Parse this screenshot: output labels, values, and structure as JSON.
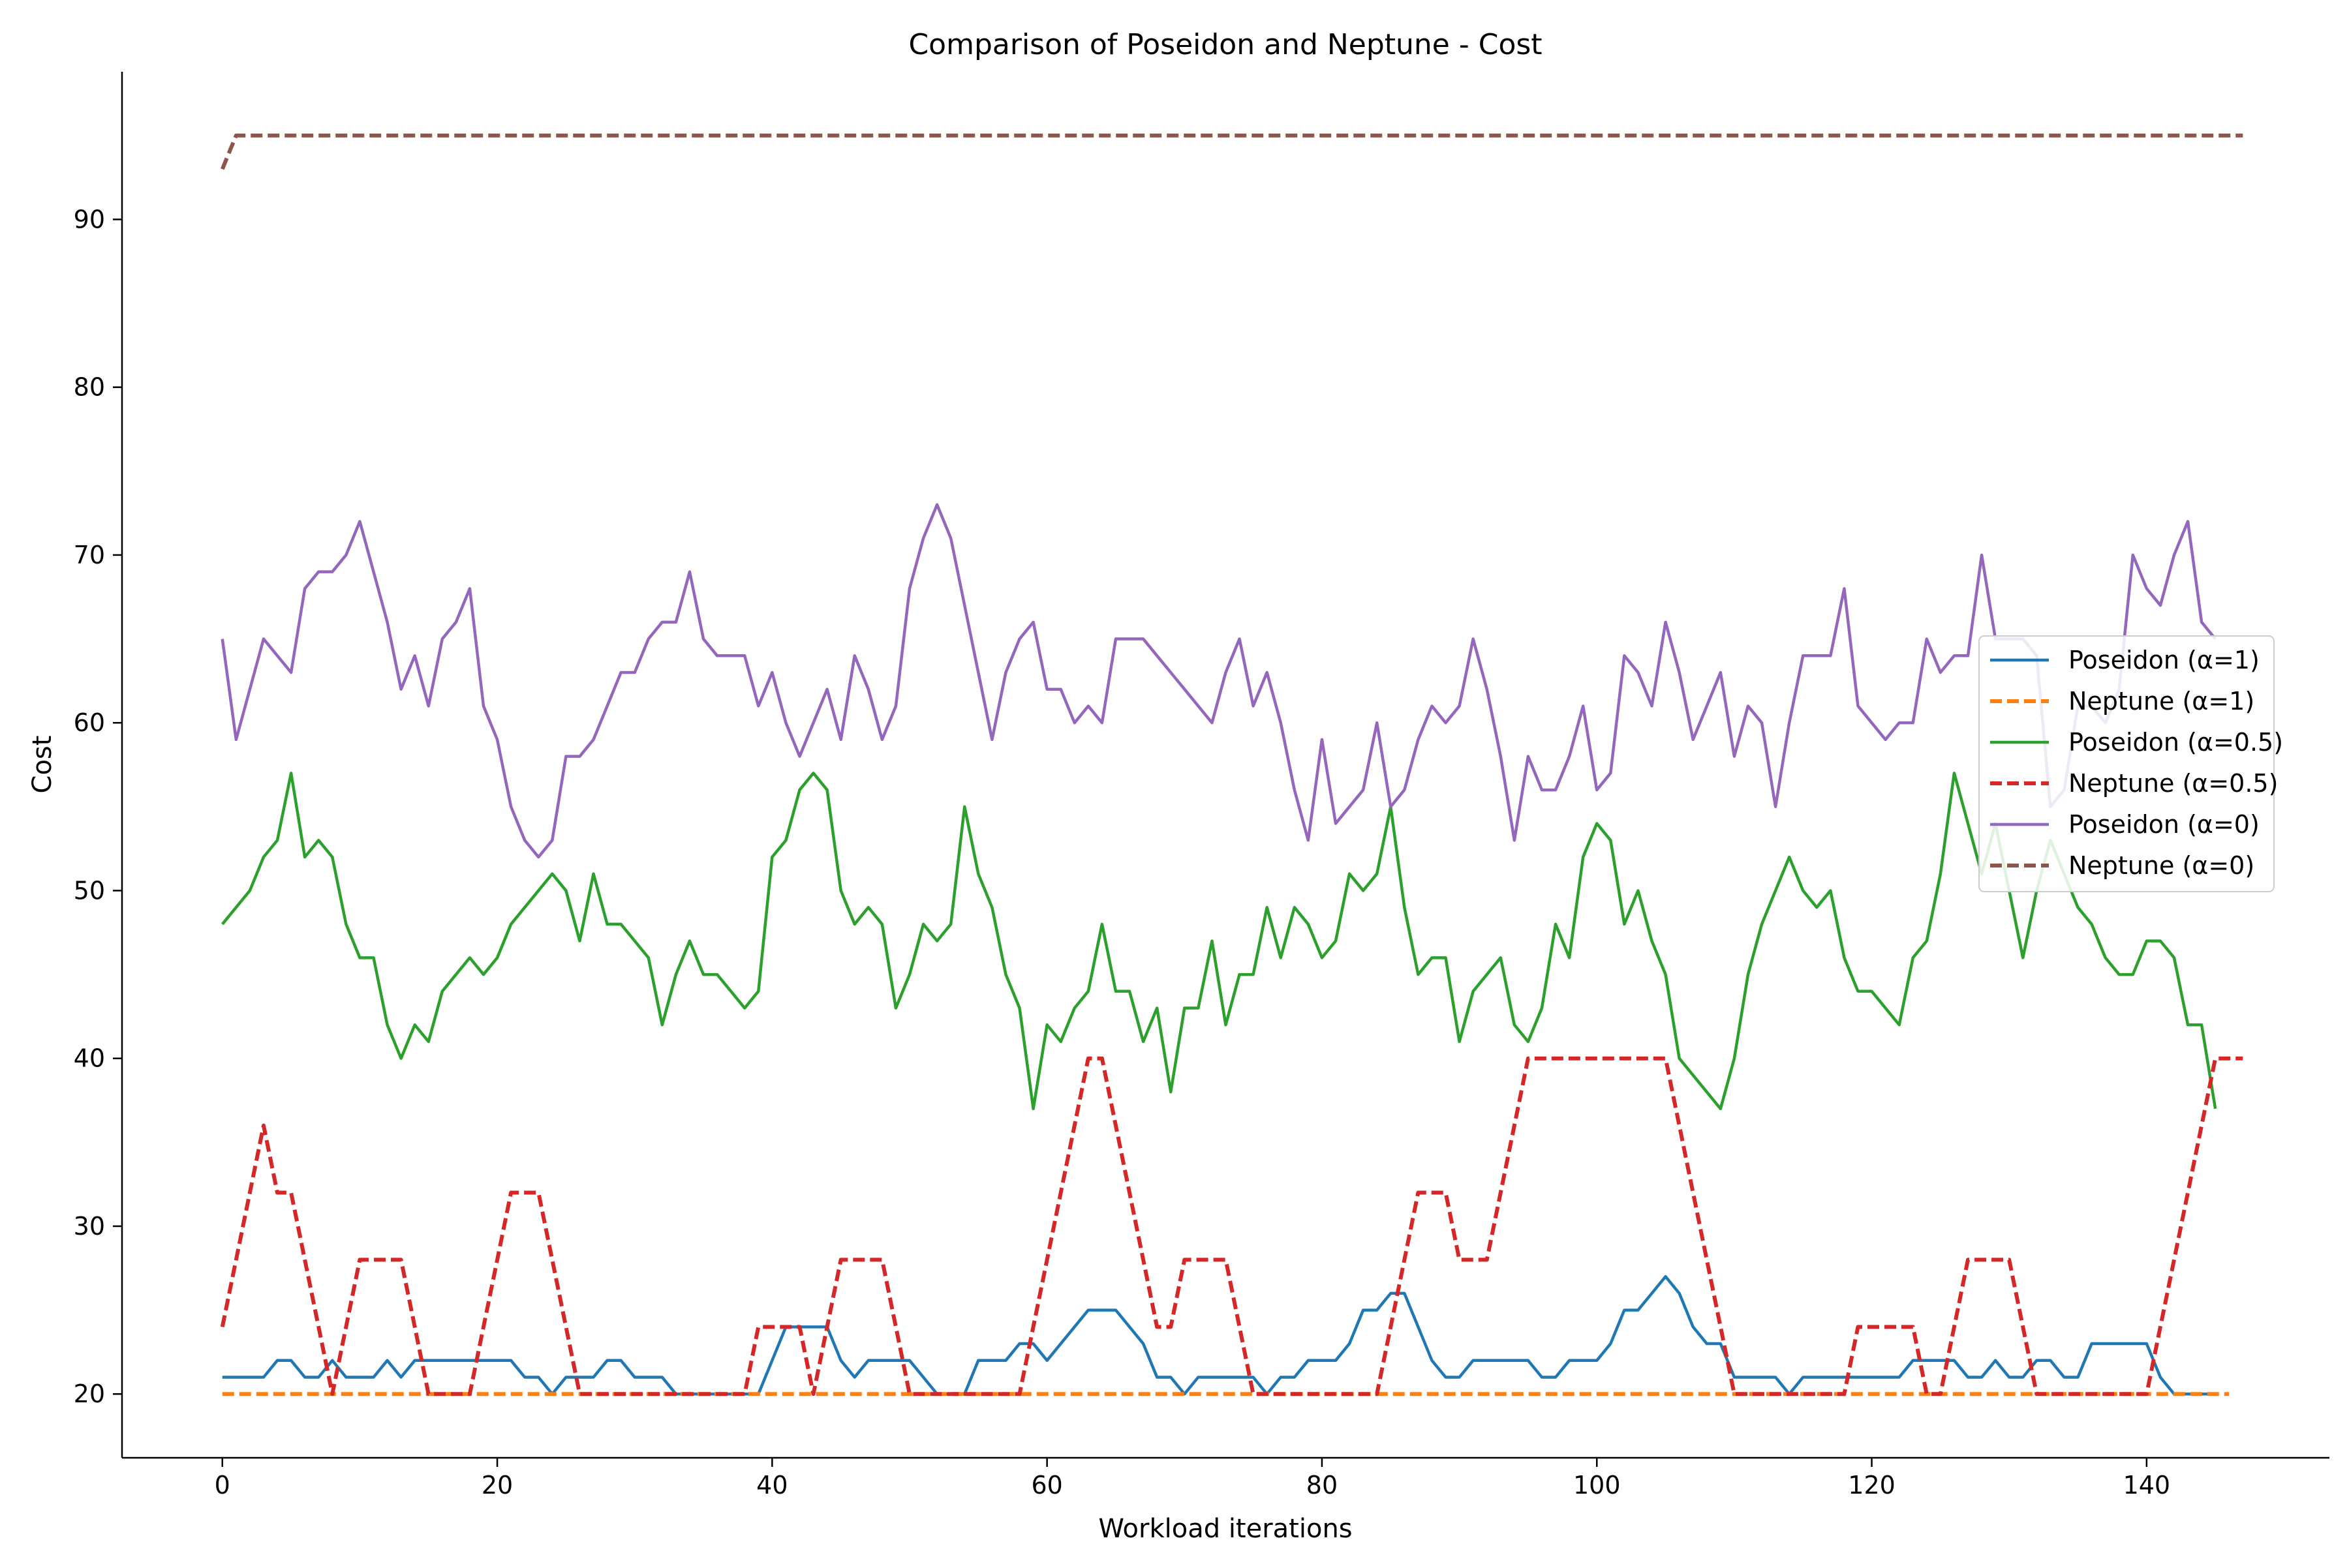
{
  "chart_data": {
    "type": "line",
    "title": "Comparison of Poseidon and Neptune - Cost",
    "xlabel": "Workload iterations",
    "ylabel": "Cost",
    "xlim": [
      -7.3,
      153.3
    ],
    "ylim": [
      16.2,
      98.8
    ],
    "xticks": [
      0,
      20,
      40,
      60,
      80,
      100,
      120,
      140
    ],
    "yticks": [
      20,
      30,
      40,
      50,
      60,
      70,
      80,
      90
    ],
    "grid": false,
    "legend": "center-right",
    "series": [
      {
        "name": "Poseidon (α=1)",
        "color": "#1f77b4",
        "dash": "solid",
        "values": [
          21,
          21,
          21,
          21,
          22,
          22,
          21,
          21,
          22,
          21,
          21,
          21,
          22,
          21,
          22,
          22,
          22,
          22,
          22,
          22,
          22,
          22,
          21,
          21,
          20,
          21,
          21,
          21,
          22,
          22,
          21,
          21,
          21,
          20,
          20,
          20,
          20,
          20,
          20,
          20,
          22,
          24,
          24,
          24,
          24,
          22,
          21,
          22,
          22,
          22,
          22,
          21,
          20,
          20,
          20,
          22,
          22,
          22,
          23,
          23,
          22,
          23,
          24,
          25,
          25,
          25,
          24,
          23,
          21,
          21,
          20,
          21,
          21,
          21,
          21,
          21,
          20,
          21,
          21,
          22,
          22,
          22,
          23,
          25,
          25,
          26,
          26,
          24,
          22,
          21,
          21,
          22,
          22,
          22,
          22,
          22,
          21,
          21,
          22,
          22,
          22,
          23,
          25,
          25,
          26,
          27,
          26,
          24,
          23,
          23,
          21,
          21,
          21,
          21,
          20,
          21,
          21,
          21,
          21,
          21,
          21,
          21,
          21,
          22,
          22,
          22,
          22,
          21,
          21,
          22,
          21,
          21,
          22,
          22,
          21,
          21,
          23,
          23,
          23,
          23,
          23,
          21,
          20,
          20,
          20,
          20
        ]
      },
      {
        "name": "Neptune (α=1)",
        "color": "#ff7f0e",
        "dash": "dashed",
        "values": [
          20,
          20,
          20,
          20,
          20,
          20,
          20,
          20,
          20,
          20,
          20,
          20,
          20,
          20,
          20,
          20,
          20,
          20,
          20,
          20,
          20,
          20,
          20,
          20,
          20,
          20,
          20,
          20,
          20,
          20,
          20,
          20,
          20,
          20,
          20,
          20,
          20,
          20,
          20,
          20,
          20,
          20,
          20,
          20,
          20,
          20,
          20,
          20,
          20,
          20,
          20,
          20,
          20,
          20,
          20,
          20,
          20,
          20,
          20,
          20,
          20,
          20,
          20,
          20,
          20,
          20,
          20,
          20,
          20,
          20,
          20,
          20,
          20,
          20,
          20,
          20,
          20,
          20,
          20,
          20,
          20,
          20,
          20,
          20,
          20,
          20,
          20,
          20,
          20,
          20,
          20,
          20,
          20,
          20,
          20,
          20,
          20,
          20,
          20,
          20,
          20,
          20,
          20,
          20,
          20,
          20,
          20,
          20,
          20,
          20,
          20,
          20,
          20,
          20,
          20,
          20,
          20,
          20,
          20,
          20,
          20,
          20,
          20,
          20,
          20,
          20,
          20,
          20,
          20,
          20,
          20,
          20,
          20,
          20,
          20,
          20,
          20,
          20,
          20,
          20,
          20,
          20,
          20,
          20,
          20,
          20,
          20
        ]
      },
      {
        "name": "Poseidon (α=0.5)",
        "color": "#2ca02c",
        "dash": "solid",
        "values": [
          48,
          49,
          50,
          52,
          53,
          57,
          52,
          53,
          52,
          48,
          46,
          46,
          42,
          40,
          42,
          41,
          44,
          45,
          46,
          45,
          46,
          48,
          49,
          50,
          51,
          50,
          47,
          51,
          48,
          48,
          47,
          46,
          42,
          45,
          47,
          45,
          45,
          44,
          43,
          44,
          52,
          53,
          56,
          57,
          56,
          50,
          48,
          49,
          48,
          43,
          45,
          48,
          47,
          48,
          55,
          51,
          49,
          45,
          43,
          37,
          42,
          41,
          43,
          44,
          48,
          44,
          44,
          41,
          43,
          38,
          43,
          43,
          47,
          42,
          45,
          45,
          49,
          46,
          49,
          48,
          46,
          47,
          51,
          50,
          51,
          55,
          49,
          45,
          46,
          46,
          41,
          44,
          45,
          46,
          42,
          41,
          43,
          48,
          46,
          52,
          54,
          53,
          48,
          50,
          47,
          45,
          40,
          39,
          38,
          37,
          40,
          45,
          48,
          50,
          52,
          50,
          49,
          50,
          46,
          44,
          44,
          43,
          42,
          46,
          47,
          51,
          57,
          54,
          51,
          54,
          50,
          46,
          50,
          53,
          51,
          49,
          48,
          46,
          45,
          45,
          47,
          47,
          46,
          42,
          42,
          37
        ]
      },
      {
        "name": "Neptune (α=0.5)",
        "color": "#d62728",
        "dash": "dashed",
        "values": [
          24,
          28,
          32,
          36,
          32,
          32,
          28,
          24,
          20,
          24,
          28,
          28,
          28,
          28,
          24,
          20,
          20,
          20,
          20,
          24,
          28,
          32,
          32,
          32,
          28,
          24,
          20,
          20,
          20,
          20,
          20,
          20,
          20,
          20,
          20,
          20,
          20,
          20,
          20,
          24,
          24,
          24,
          24,
          20,
          24,
          28,
          28,
          28,
          28,
          24,
          20,
          20,
          20,
          20,
          20,
          20,
          20,
          20,
          20,
          24,
          28,
          32,
          36,
          40,
          40,
          36,
          32,
          28,
          24,
          24,
          28,
          28,
          28,
          28,
          24,
          20,
          20,
          20,
          20,
          20,
          20,
          20,
          20,
          20,
          20,
          24,
          28,
          32,
          32,
          32,
          28,
          28,
          28,
          32,
          36,
          40,
          40,
          40,
          40,
          40,
          40,
          40,
          40,
          40,
          40,
          40,
          36,
          32,
          28,
          24,
          20,
          20,
          20,
          20,
          20,
          20,
          20,
          20,
          20,
          24,
          24,
          24,
          24,
          24,
          20,
          20,
          24,
          28,
          28,
          28,
          28,
          24,
          20,
          20,
          20,
          20,
          20,
          20,
          20,
          20,
          20,
          24,
          28,
          32,
          36,
          40,
          40,
          40
        ]
      },
      {
        "name": "Poseidon (α=0)",
        "color": "#9467bd",
        "dash": "solid",
        "values": [
          65,
          59,
          62,
          65,
          64,
          63,
          68,
          69,
          69,
          70,
          72,
          69,
          66,
          62,
          64,
          61,
          65,
          66,
          68,
          61,
          59,
          55,
          53,
          52,
          53,
          58,
          58,
          59,
          61,
          63,
          63,
          65,
          66,
          66,
          69,
          65,
          64,
          64,
          64,
          61,
          63,
          60,
          58,
          60,
          62,
          59,
          64,
          62,
          59,
          61,
          68,
          71,
          73,
          71,
          67,
          63,
          59,
          63,
          65,
          66,
          62,
          62,
          60,
          61,
          60,
          65,
          65,
          65,
          64,
          63,
          62,
          61,
          60,
          63,
          65,
          61,
          63,
          60,
          56,
          53,
          59,
          54,
          55,
          56,
          60,
          55,
          56,
          59,
          61,
          60,
          61,
          65,
          62,
          58,
          53,
          58,
          56,
          56,
          58,
          61,
          56,
          57,
          64,
          63,
          61,
          66,
          63,
          59,
          61,
          63,
          58,
          61,
          60,
          55,
          60,
          64,
          64,
          64,
          68,
          61,
          60,
          59,
          60,
          60,
          65,
          63,
          64,
          64,
          70,
          65,
          65,
          65,
          64,
          55,
          56,
          61,
          61,
          60,
          62,
          70,
          68,
          67,
          70,
          72,
          66,
          65
        ]
      },
      {
        "name": "Neptune (α=0)",
        "color": "#8c564b",
        "dash": "dashed",
        "values": [
          93,
          95,
          95,
          95,
          95,
          95,
          95,
          95,
          95,
          95,
          95,
          95,
          95,
          95,
          95,
          95,
          95,
          95,
          95,
          95,
          95,
          95,
          95,
          95,
          95,
          95,
          95,
          95,
          95,
          95,
          95,
          95,
          95,
          95,
          95,
          95,
          95,
          95,
          95,
          95,
          95,
          95,
          95,
          95,
          95,
          95,
          95,
          95,
          95,
          95,
          95,
          95,
          95,
          95,
          95,
          95,
          95,
          95,
          95,
          95,
          95,
          95,
          95,
          95,
          95,
          95,
          95,
          95,
          95,
          95,
          95,
          95,
          95,
          95,
          95,
          95,
          95,
          95,
          95,
          95,
          95,
          95,
          95,
          95,
          95,
          95,
          95,
          95,
          95,
          95,
          95,
          95,
          95,
          95,
          95,
          95,
          95,
          95,
          95,
          95,
          95,
          95,
          95,
          95,
          95,
          95,
          95,
          95,
          95,
          95,
          95,
          95,
          95,
          95,
          95,
          95,
          95,
          95,
          95,
          95,
          95,
          95,
          95,
          95,
          95,
          95,
          95,
          95,
          95,
          95,
          95,
          95,
          95,
          95,
          95,
          95,
          95,
          95,
          95,
          95,
          95,
          95,
          95,
          95,
          95,
          95,
          95,
          95
        ]
      }
    ]
  }
}
